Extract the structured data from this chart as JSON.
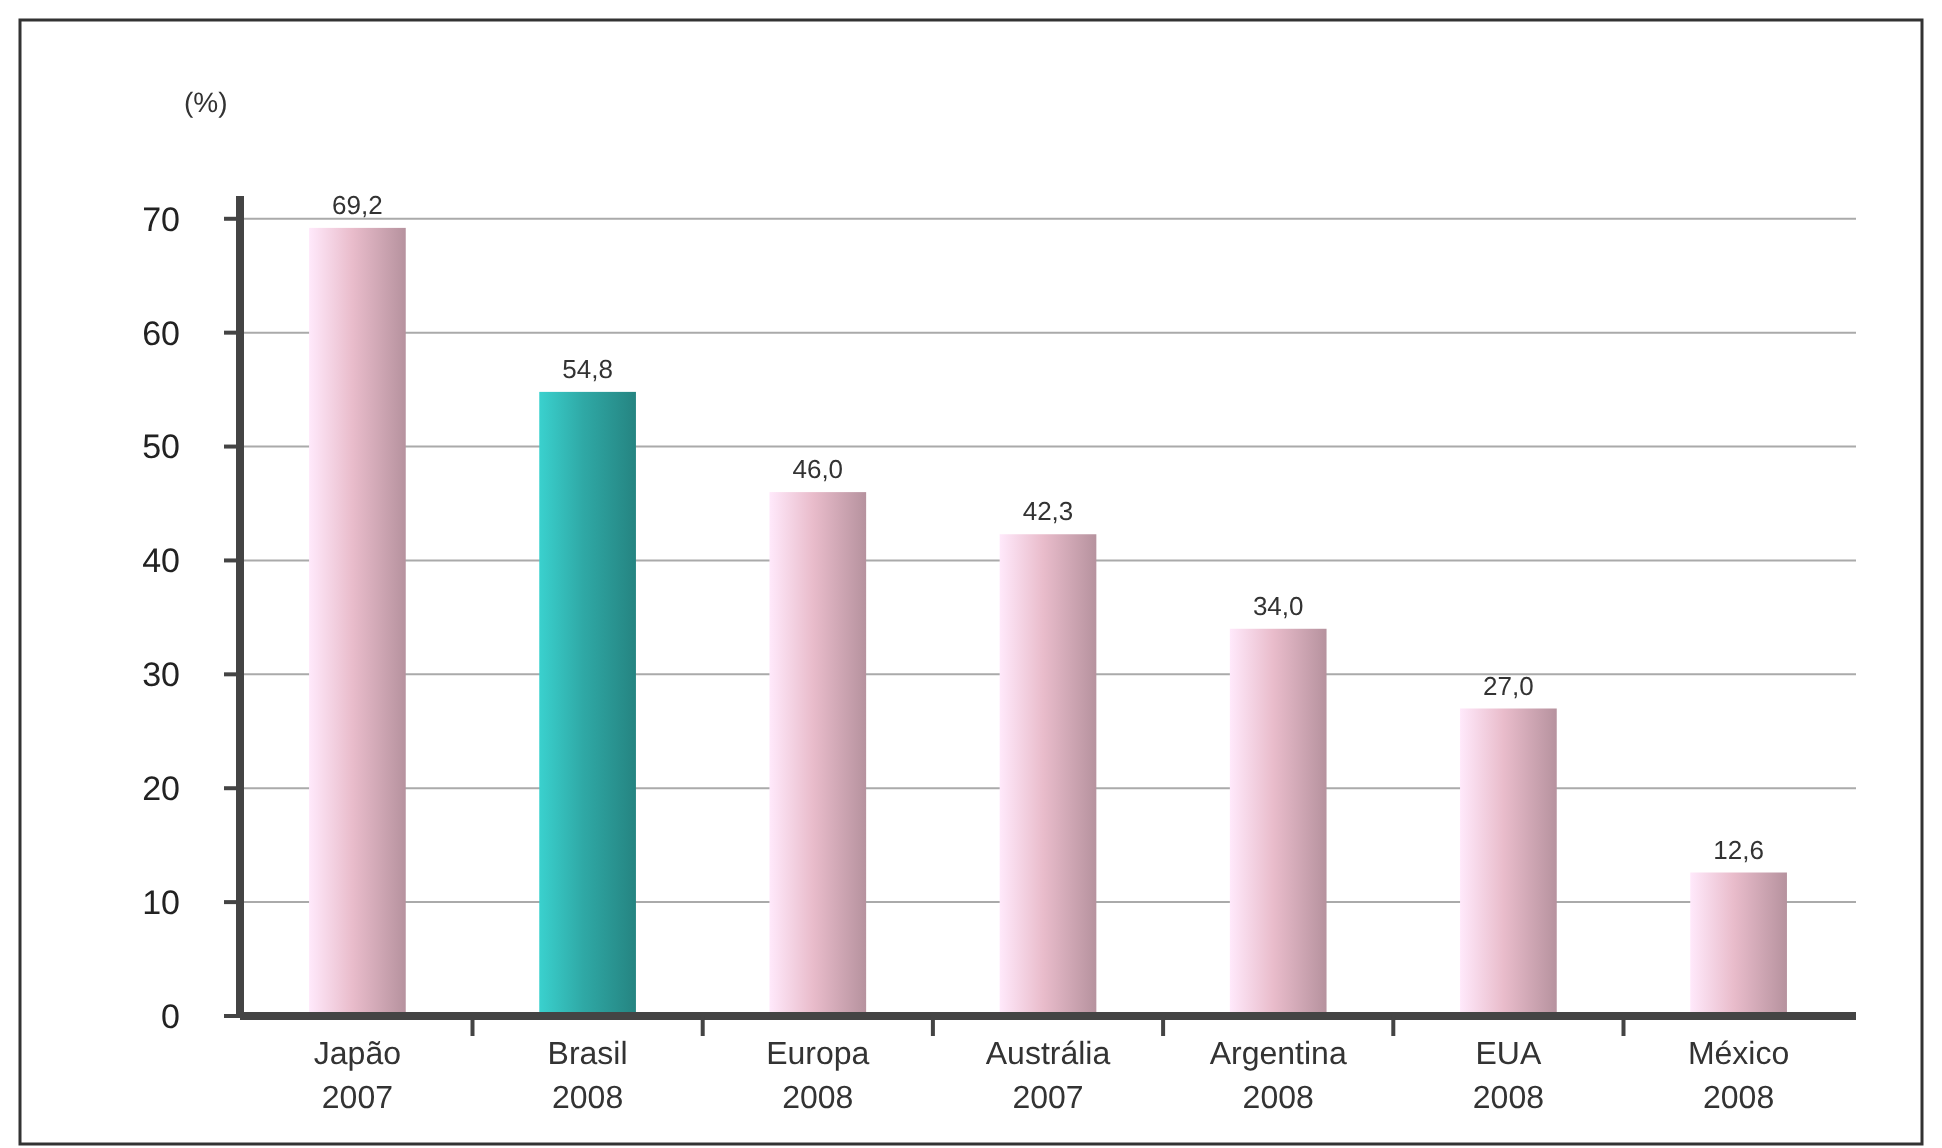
{
  "chart_data": {
    "type": "bar",
    "ylabel": "(%)",
    "categories": [
      "Japão\n2007",
      "Brasil\n2008",
      "Europa\n2008",
      "Austrália\n2007",
      "Argentina\n2008",
      "EUA\n2008",
      "México\n2008"
    ],
    "values": [
      69.2,
      54.8,
      46.0,
      42.3,
      34.0,
      27.0,
      12.6
    ],
    "value_labels": [
      "69,2",
      "54,8",
      "46,0",
      "42,3",
      "34,0",
      "27,0",
      "12,6"
    ],
    "colors": [
      "#e9bccb",
      "#2fa9a6",
      "#e9bccb",
      "#e9bccb",
      "#e9bccb",
      "#e9bccb",
      "#e9bccb"
    ],
    "ylim": [
      0,
      72
    ],
    "yticks": [
      0,
      10,
      20,
      30,
      40,
      50,
      60,
      70
    ],
    "grid": "y"
  }
}
